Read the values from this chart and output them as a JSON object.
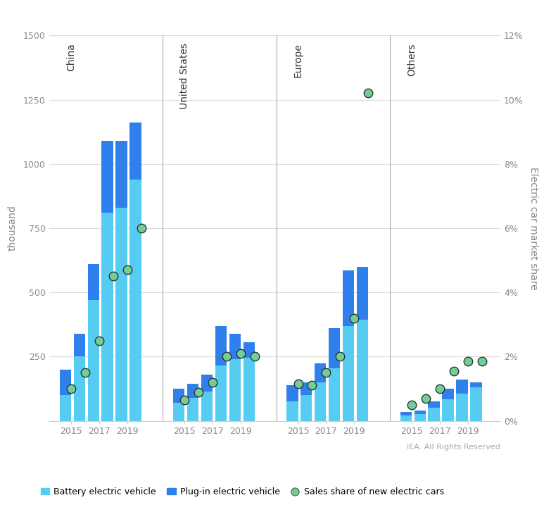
{
  "regions": [
    "China",
    "United States",
    "Europe",
    "Others"
  ],
  "years": [
    2015,
    2016,
    2017,
    2018,
    2019,
    2020
  ],
  "bev": {
    "China": [
      100,
      250,
      470,
      810,
      830,
      940
    ],
    "United States": [
      70,
      90,
      115,
      215,
      240,
      245
    ],
    "Europe": [
      75,
      100,
      150,
      205,
      370,
      395
    ],
    "Others": [
      20,
      25,
      50,
      85,
      105,
      130
    ]
  },
  "phev": {
    "China": [
      100,
      90,
      140,
      280,
      260,
      220
    ],
    "United States": [
      55,
      55,
      65,
      155,
      100,
      60
    ],
    "Europe": [
      65,
      50,
      75,
      155,
      215,
      205
    ],
    "Others": [
      15,
      15,
      25,
      40,
      55,
      20
    ]
  },
  "sales_share": {
    "China": [
      1.0,
      1.5,
      2.5,
      4.5,
      4.7,
      6.0
    ],
    "United States": [
      0.65,
      0.9,
      1.2,
      2.0,
      2.1,
      2.0
    ],
    "Europe": [
      1.15,
      1.1,
      1.5,
      2.0,
      3.2,
      10.2
    ],
    "Others": [
      0.5,
      0.7,
      1.0,
      1.55,
      1.85,
      1.85
    ]
  },
  "color_bev": "#56CCF2",
  "color_phev": "#2F80ED",
  "color_share": "#6FCF97",
  "ylim_left": [
    0,
    1500
  ],
  "ylim_right": [
    0,
    12
  ],
  "ylabel_left": "thousand",
  "ylabel_right": "Electric car market share",
  "yticks_left": [
    0,
    250,
    500,
    750,
    1000,
    1250,
    1500
  ],
  "yticks_right": [
    0,
    2,
    4,
    6,
    8,
    10,
    12
  ],
  "ytick_labels_right": [
    "0%",
    "2%",
    "4%",
    "6%",
    "8%",
    "10%",
    "12%"
  ],
  "divider_color": "#aaaaaa",
  "grid_color": "#dddddd",
  "background_color": "#ffffff",
  "annotation": "IEA. All Rights Reserved",
  "legend_labels": [
    "Battery electric vehicle",
    "Plug-in electric vehicle",
    "Sales share of new electric cars"
  ]
}
